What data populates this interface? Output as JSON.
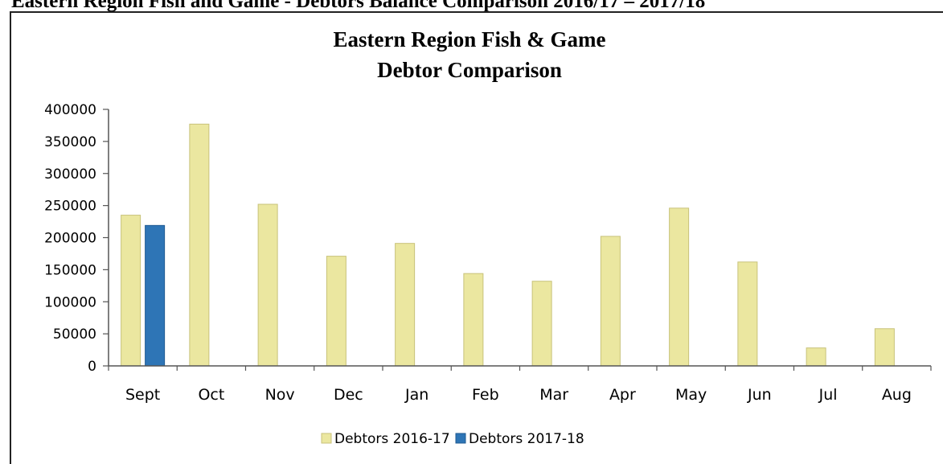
{
  "page_heading": "Eastern Region Fish and Game - Debtors Balance Comparison 2016/17 – 2017/18",
  "chart_data": {
    "type": "bar",
    "title": "Eastern Region Fish & Game",
    "subtitle": "Debtor Comparison",
    "xlabel": "",
    "ylabel": "",
    "categories": [
      "Sept",
      "Oct",
      "Nov",
      "Dec",
      "Jan",
      "Feb",
      "Mar",
      "Apr",
      "May",
      "Jun",
      "Jul",
      "Aug"
    ],
    "series": [
      {
        "name": "Debtors 2016-17",
        "color": "#ebe7a0",
        "values": [
          235000,
          377000,
          252000,
          171000,
          191000,
          144000,
          132000,
          202000,
          246000,
          162000,
          28000,
          58000
        ]
      },
      {
        "name": "Debtors 2017-18",
        "color": "#2e75b6",
        "values": [
          219000,
          null,
          null,
          null,
          null,
          null,
          null,
          null,
          null,
          null,
          null,
          null
        ]
      }
    ],
    "ylim": [
      0,
      400000
    ],
    "yticks": [
      "0",
      "50000",
      "100000",
      "150000",
      "200000",
      "250000",
      "300000",
      "350000",
      "400000"
    ],
    "grid": false,
    "legend_position": "bottom"
  }
}
